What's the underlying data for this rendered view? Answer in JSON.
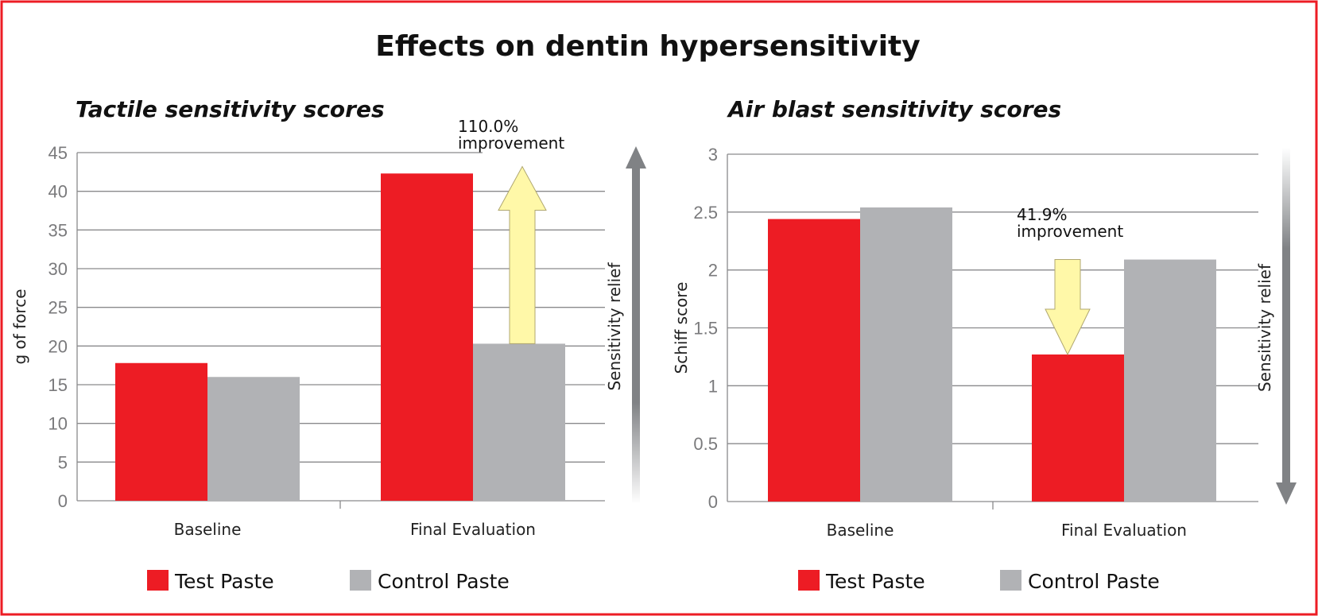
{
  "title": "Effects on dentin hypersensitivity",
  "colors": {
    "test": "#ed1c24",
    "control": "#b1b2b5",
    "arrow_fill": "#fff8a8",
    "relief_arrow": "#808285",
    "border": "#ed1c24"
  },
  "chart_data": [
    {
      "type": "bar",
      "title": "Tactile sensitivity scores",
      "ylabel": "g of force",
      "side_label": "Sensitivity relief",
      "side_arrow_direction": "up",
      "categories": [
        "Baseline",
        "Final Evaluation"
      ],
      "ylim": [
        0,
        45
      ],
      "yticks": [
        0,
        5,
        10,
        15,
        20,
        25,
        30,
        35,
        40,
        45
      ],
      "grid": true,
      "legend_placement": "bottom",
      "series": [
        {
          "name": "Test Paste",
          "values": [
            17.8,
            42.3
          ]
        },
        {
          "name": "Control Paste",
          "values": [
            16.0,
            20.3
          ]
        }
      ],
      "annotation": {
        "line1": "110.0%",
        "line2": "improvement",
        "arrow_direction": "up"
      }
    },
    {
      "type": "bar",
      "title": "Air blast sensitivity scores",
      "ylabel": "Schiff score",
      "side_label": "Sensitivity relief",
      "side_arrow_direction": "down",
      "categories": [
        "Baseline",
        "Final Evaluation"
      ],
      "ylim": [
        0,
        3
      ],
      "yticks": [
        0,
        0.5,
        1,
        1.5,
        2,
        2.5,
        3
      ],
      "grid": true,
      "legend_placement": "bottom",
      "series": [
        {
          "name": "Test Paste",
          "values": [
            2.44,
            1.27
          ]
        },
        {
          "name": "Control Paste",
          "values": [
            2.54,
            2.09
          ]
        }
      ],
      "annotation": {
        "line1": "41.9%",
        "line2": "improvement",
        "arrow_direction": "down"
      }
    }
  ]
}
